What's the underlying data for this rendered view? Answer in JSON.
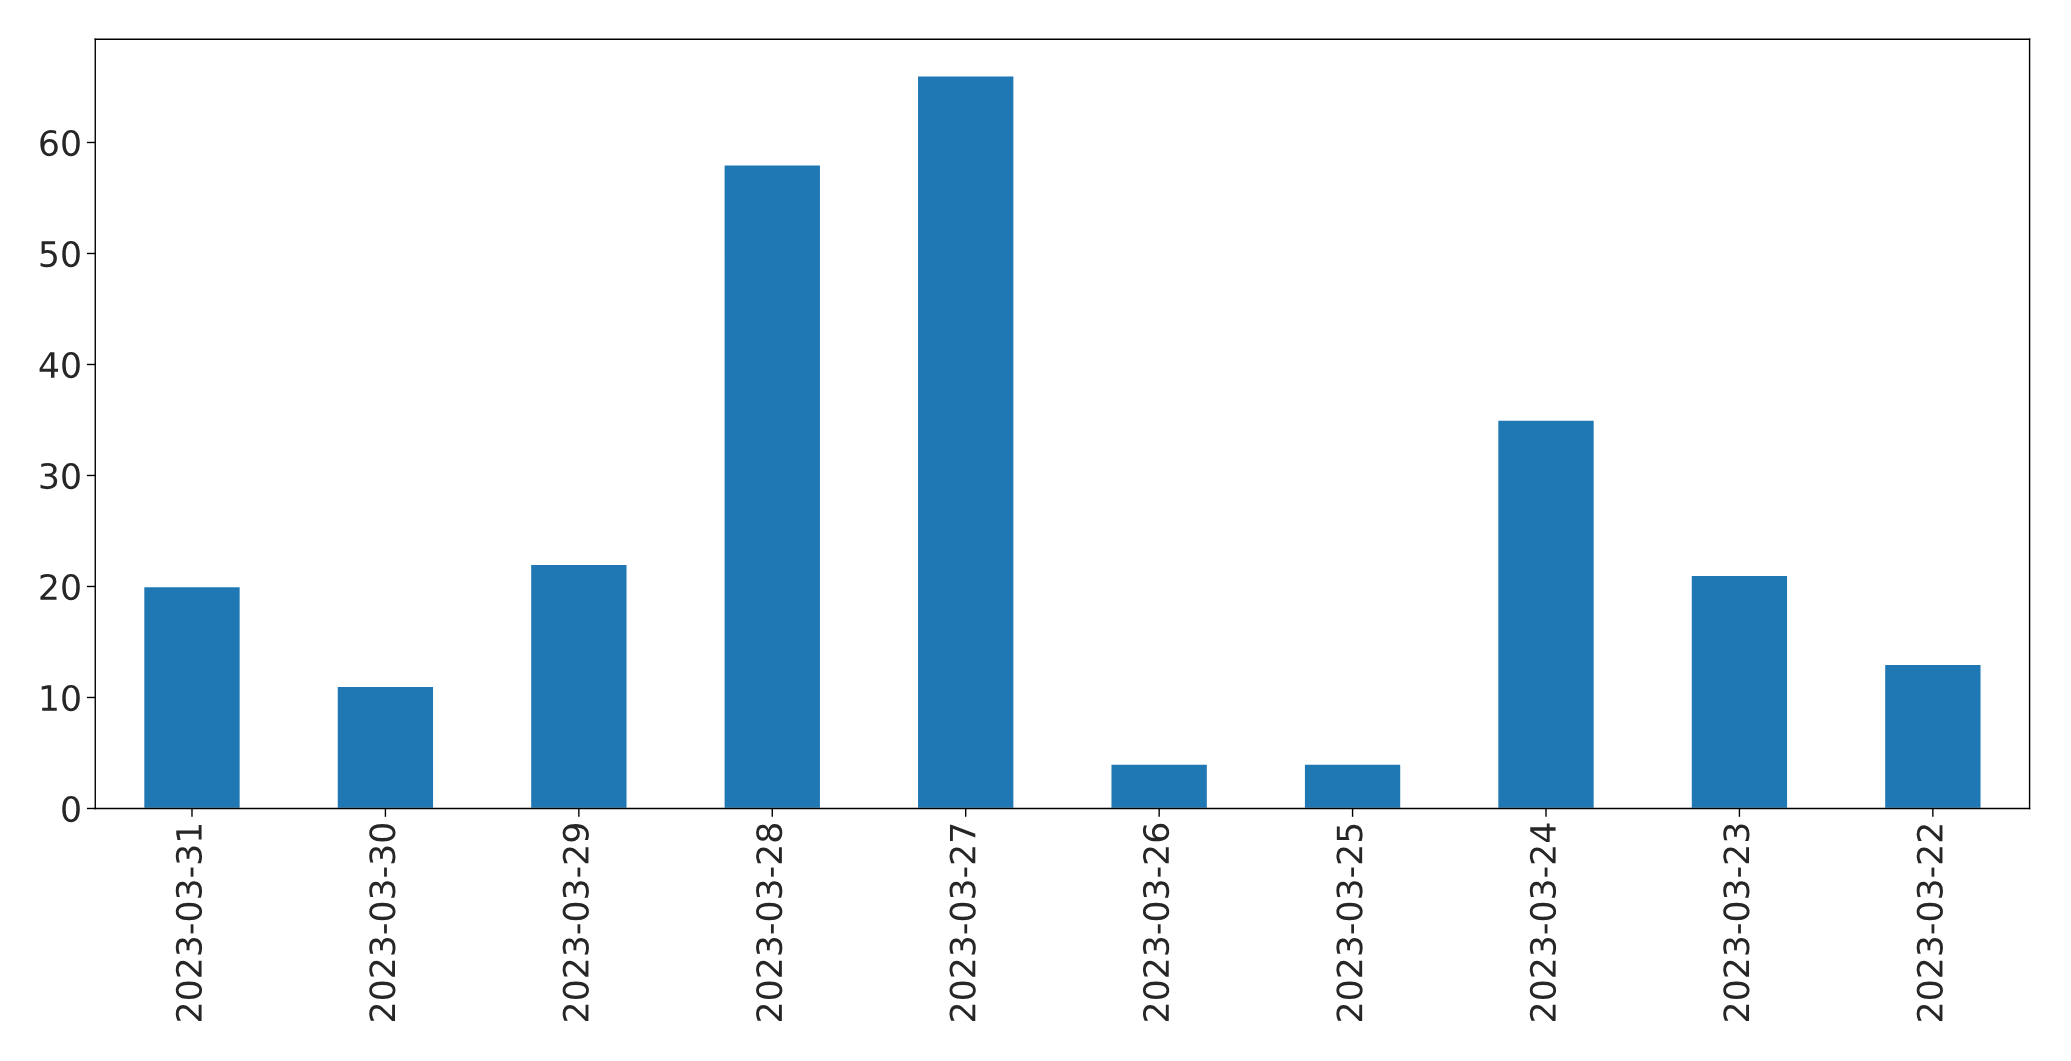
{
  "chart_data": {
    "type": "bar",
    "categories": [
      "2023-03-31",
      "2023-03-30",
      "2023-03-29",
      "2023-03-28",
      "2023-03-27",
      "2023-03-26",
      "2023-03-25",
      "2023-03-24",
      "2023-03-23",
      "2023-03-22"
    ],
    "values": [
      20,
      11,
      22,
      58,
      66,
      4,
      4,
      35,
      21,
      13
    ],
    "color": "#1f77b4",
    "ylim": [
      0,
      69.3
    ],
    "yticks": [
      0,
      10,
      20,
      30,
      40,
      50,
      60
    ],
    "grid": false,
    "legend": false
  }
}
